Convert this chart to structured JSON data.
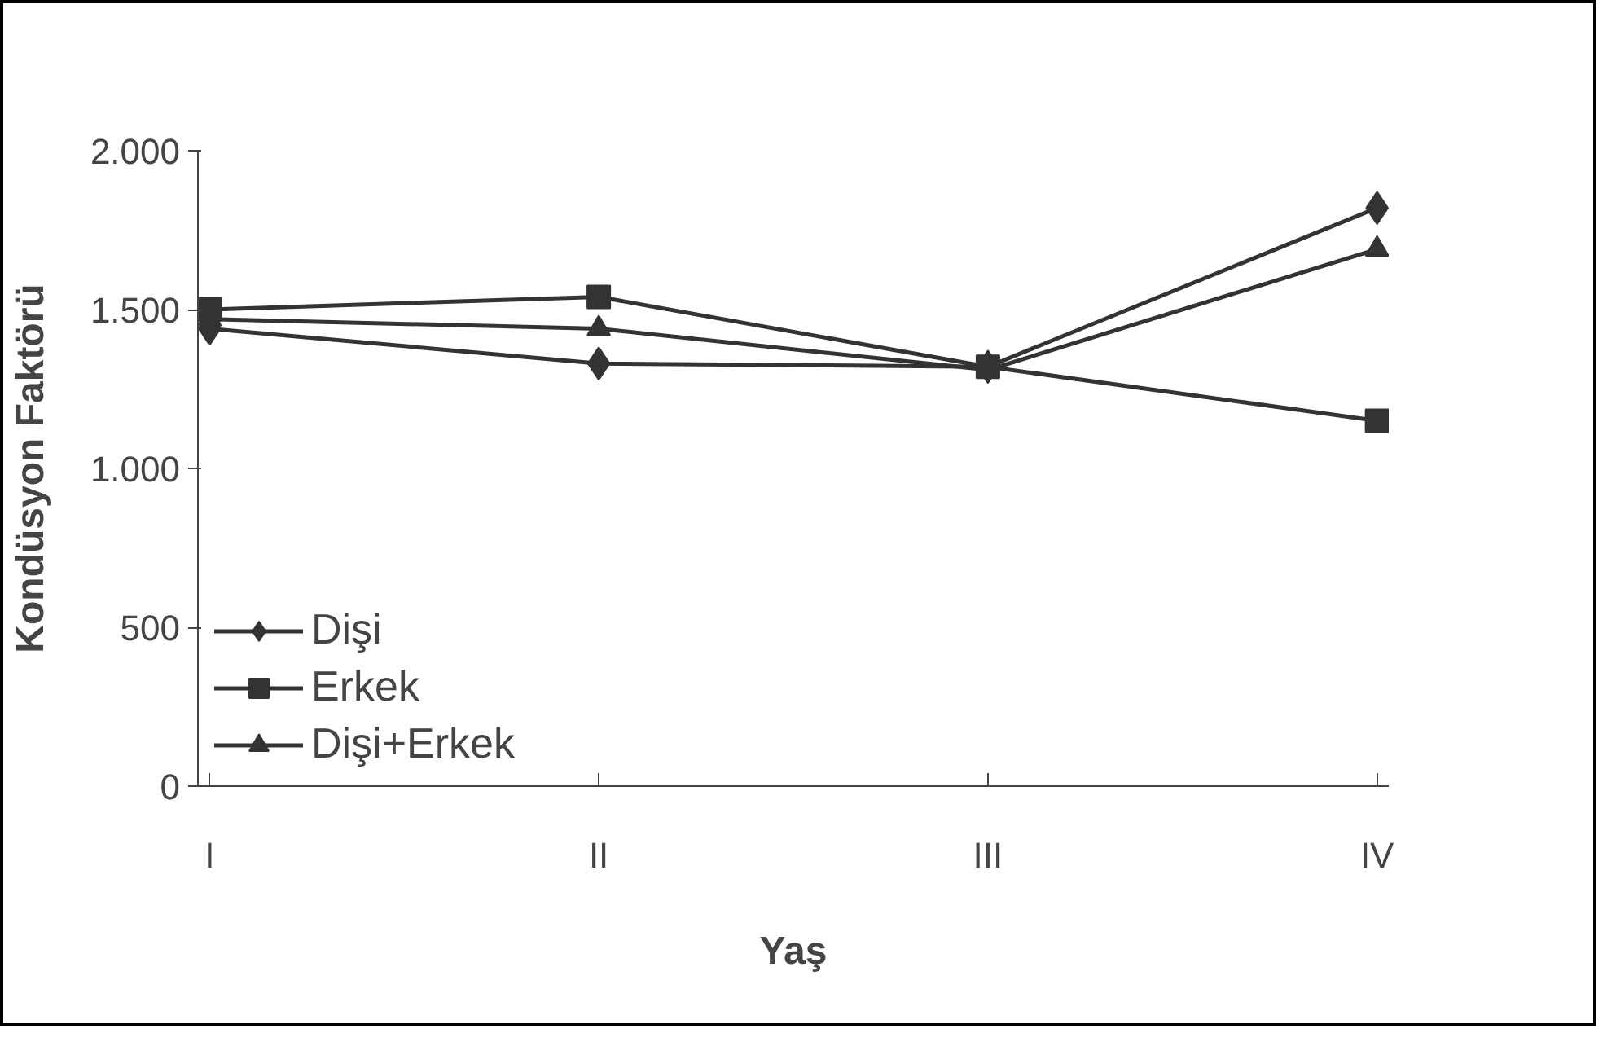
{
  "chart_data": {
    "type": "line",
    "xlabel": "Yaş",
    "ylabel": "Kondüsyon Faktörü",
    "categories": [
      "I",
      "II",
      "III",
      "IV"
    ],
    "ylim": [
      0,
      2000
    ],
    "yticks": [
      0,
      {
        "value": 500,
        "label": "500"
      },
      {
        "value": 1000,
        "label": "1.000"
      },
      {
        "value": 1500,
        "label": "1.500"
      },
      {
        "value": 2000,
        "label": "2.000"
      }
    ],
    "grid": false,
    "legend": "bottom left",
    "series": [
      {
        "name": "Dişi",
        "color": "#333333",
        "marker": "diamond",
        "values": [
          1440,
          1330,
          1320,
          1820
        ]
      },
      {
        "name": "Erkek",
        "color": "#333333",
        "marker": "square",
        "values": [
          1500,
          1540,
          1320,
          1150
        ]
      },
      {
        "name": "Dişi+Erkek",
        "color": "#333333",
        "marker": "triangle",
        "values": [
          1470,
          1440,
          1310,
          1690
        ]
      }
    ]
  }
}
